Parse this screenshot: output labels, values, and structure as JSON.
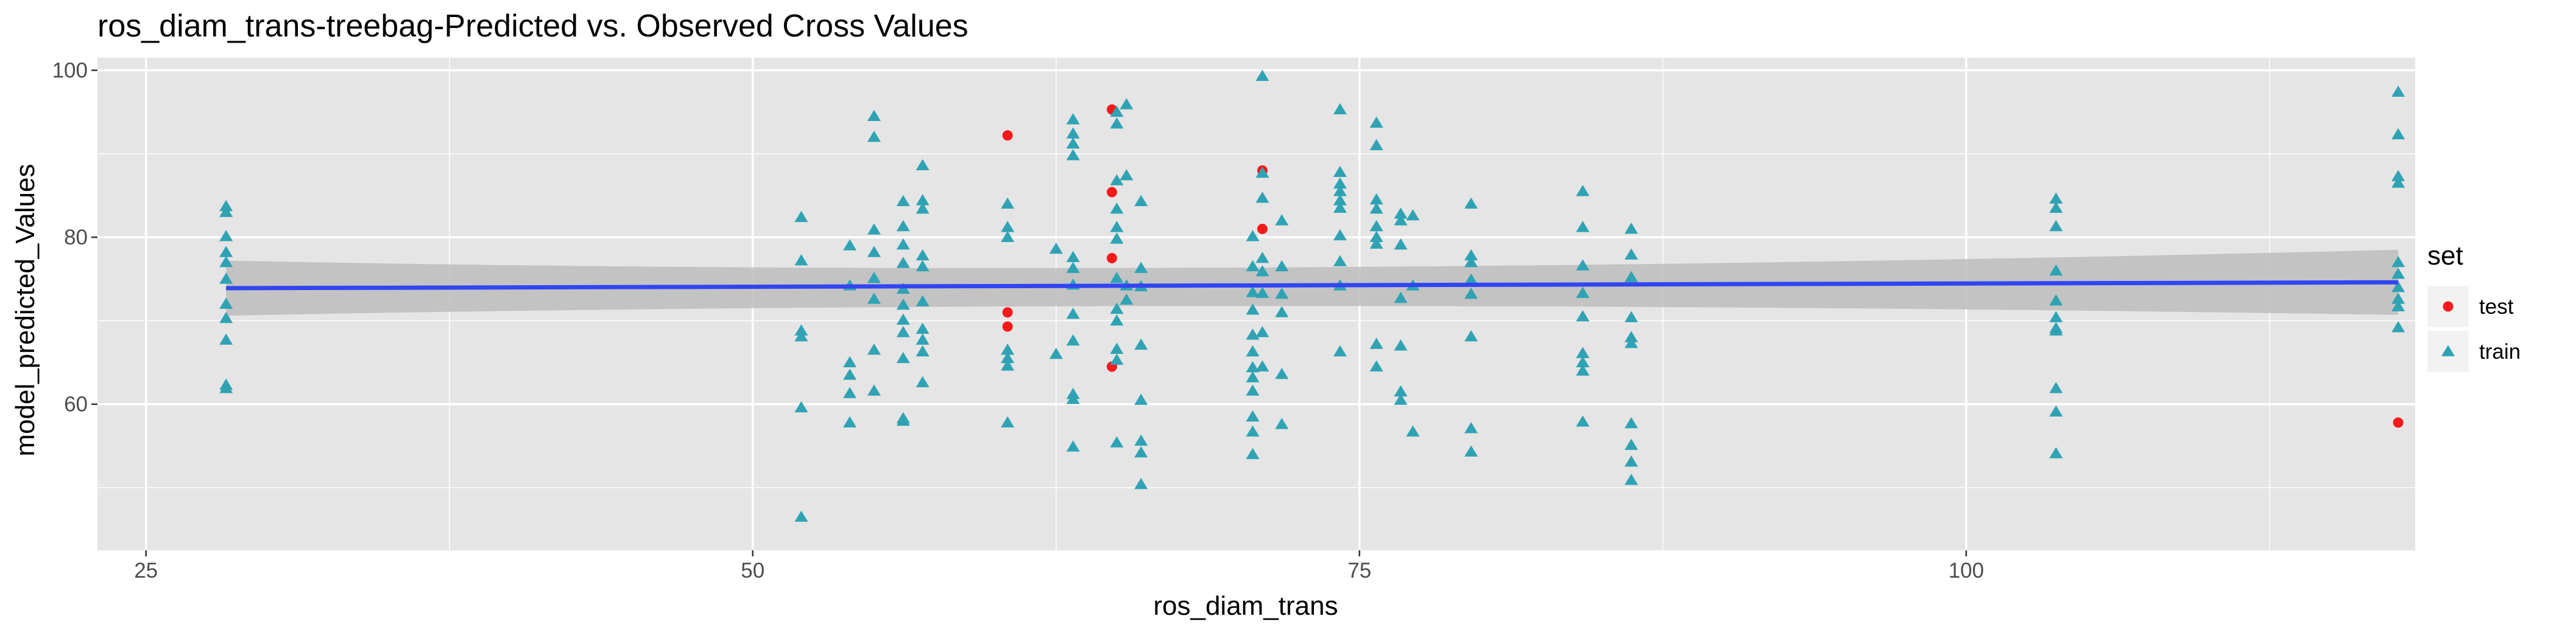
{
  "chart_data": {
    "type": "scatter",
    "title": "ros_diam_trans-treebag-Predicted vs. Observed Cross Values",
    "xlabel": "ros_diam_trans",
    "ylabel": "model_predicted_Values",
    "xlim": [
      23.0,
      118.5
    ],
    "ylim": [
      42.5,
      101.5
    ],
    "x_ticks": [
      25,
      50,
      75,
      100
    ],
    "y_ticks": [
      60,
      80,
      100
    ],
    "grid": true,
    "legend": {
      "title": "set",
      "position": "right",
      "entries": [
        "test",
        "train"
      ]
    },
    "colors": {
      "test": "#F8191B",
      "train": "#2FA3B4",
      "fit_line": "#3245F2",
      "ribbon": "#BDBDBD",
      "panel": "#E5E5E5",
      "grid": "#FFFFFF"
    },
    "series": [
      {
        "name": "test",
        "marker": "circle",
        "points": [
          [
            60.5,
            92.2
          ],
          [
            60.5,
            71.0
          ],
          [
            60.5,
            69.3
          ],
          [
            64.8,
            95.3
          ],
          [
            64.8,
            85.4
          ],
          [
            64.8,
            77.5
          ],
          [
            64.8,
            64.5
          ],
          [
            71.0,
            88.0
          ],
          [
            71.0,
            81.0
          ],
          [
            117.8,
            57.8
          ]
        ]
      },
      {
        "name": "train",
        "marker": "triangle",
        "points": [
          [
            28.3,
            83.7
          ],
          [
            28.3,
            83.0
          ],
          [
            28.3,
            80.1
          ],
          [
            28.3,
            78.2
          ],
          [
            28.3,
            77.0
          ],
          [
            28.3,
            75.0
          ],
          [
            28.3,
            72.0
          ],
          [
            28.3,
            70.3
          ],
          [
            28.3,
            67.7
          ],
          [
            28.3,
            62.3
          ],
          [
            28.3,
            61.9
          ],
          [
            52.0,
            82.4
          ],
          [
            52.0,
            77.2
          ],
          [
            52.0,
            68.8
          ],
          [
            52.0,
            68.1
          ],
          [
            52.0,
            59.6
          ],
          [
            52.0,
            46.5
          ],
          [
            54.0,
            79.0
          ],
          [
            54.0,
            74.2
          ],
          [
            54.0,
            65.0
          ],
          [
            54.0,
            63.5
          ],
          [
            54.0,
            61.3
          ],
          [
            54.0,
            57.8
          ],
          [
            55.0,
            94.5
          ],
          [
            55.0,
            92.0
          ],
          [
            55.0,
            80.9
          ],
          [
            55.0,
            78.2
          ],
          [
            55.0,
            75.1
          ],
          [
            55.0,
            72.6
          ],
          [
            55.0,
            66.5
          ],
          [
            55.0,
            61.6
          ],
          [
            56.2,
            84.3
          ],
          [
            56.2,
            81.3
          ],
          [
            56.2,
            79.1
          ],
          [
            56.2,
            76.9
          ],
          [
            56.2,
            73.8
          ],
          [
            56.2,
            71.9
          ],
          [
            56.2,
            70.1
          ],
          [
            56.2,
            68.6
          ],
          [
            56.2,
            65.5
          ],
          [
            56.2,
            58.3
          ],
          [
            56.2,
            58.0
          ],
          [
            57.0,
            88.6
          ],
          [
            57.0,
            84.4
          ],
          [
            57.0,
            83.4
          ],
          [
            57.0,
            77.8
          ],
          [
            57.0,
            76.5
          ],
          [
            57.0,
            72.3
          ],
          [
            57.0,
            69.0
          ],
          [
            57.0,
            67.7
          ],
          [
            57.0,
            66.3
          ],
          [
            57.0,
            62.6
          ],
          [
            60.5,
            84.0
          ],
          [
            60.5,
            81.2
          ],
          [
            60.5,
            80.0
          ],
          [
            60.5,
            66.5
          ],
          [
            60.5,
            65.5
          ],
          [
            60.5,
            64.6
          ],
          [
            60.5,
            57.8
          ],
          [
            62.5,
            78.6
          ],
          [
            62.5,
            66.0
          ],
          [
            63.2,
            94.1
          ],
          [
            63.2,
            92.4
          ],
          [
            63.2,
            91.2
          ],
          [
            63.2,
            89.8
          ],
          [
            63.2,
            77.6
          ],
          [
            63.2,
            76.3
          ],
          [
            63.2,
            74.3
          ],
          [
            63.2,
            70.8
          ],
          [
            63.2,
            67.6
          ],
          [
            63.2,
            61.2
          ],
          [
            63.2,
            60.6
          ],
          [
            63.2,
            54.9
          ],
          [
            65.0,
            95.0
          ],
          [
            65.0,
            93.6
          ],
          [
            65.0,
            86.8
          ],
          [
            65.0,
            83.4
          ],
          [
            65.0,
            81.2
          ],
          [
            65.0,
            79.8
          ],
          [
            65.0,
            75.1
          ],
          [
            65.0,
            71.4
          ],
          [
            65.0,
            70.0
          ],
          [
            65.0,
            66.6
          ],
          [
            65.0,
            65.3
          ],
          [
            65.0,
            55.4
          ],
          [
            65.4,
            95.9
          ],
          [
            65.4,
            87.4
          ],
          [
            65.4,
            74.2
          ],
          [
            65.4,
            72.5
          ],
          [
            66.0,
            84.3
          ],
          [
            66.0,
            76.3
          ],
          [
            66.0,
            74.1
          ],
          [
            66.0,
            67.1
          ],
          [
            66.0,
            60.5
          ],
          [
            66.0,
            55.6
          ],
          [
            66.0,
            54.2
          ],
          [
            66.0,
            50.4
          ],
          [
            70.6,
            80.1
          ],
          [
            70.6,
            76.5
          ],
          [
            70.6,
            73.4
          ],
          [
            70.6,
            71.3
          ],
          [
            70.6,
            68.3
          ],
          [
            70.6,
            66.3
          ],
          [
            70.6,
            64.4
          ],
          [
            70.6,
            63.2
          ],
          [
            70.6,
            61.6
          ],
          [
            70.6,
            58.5
          ],
          [
            70.6,
            56.7
          ],
          [
            70.6,
            54.0
          ],
          [
            71.0,
            99.3
          ],
          [
            71.0,
            87.7
          ],
          [
            71.0,
            84.7
          ],
          [
            71.0,
            77.5
          ],
          [
            71.0,
            75.9
          ],
          [
            71.0,
            73.3
          ],
          [
            71.0,
            68.6
          ],
          [
            71.0,
            64.5
          ],
          [
            71.8,
            82.0
          ],
          [
            71.8,
            76.5
          ],
          [
            71.8,
            73.2
          ],
          [
            71.8,
            71.0
          ],
          [
            71.8,
            63.6
          ],
          [
            71.8,
            57.6
          ],
          [
            74.2,
            95.3
          ],
          [
            74.2,
            87.8
          ],
          [
            74.2,
            86.4
          ],
          [
            74.2,
            85.5
          ],
          [
            74.2,
            84.4
          ],
          [
            74.2,
            83.5
          ],
          [
            74.2,
            80.2
          ],
          [
            74.2,
            77.1
          ],
          [
            74.2,
            74.2
          ],
          [
            74.2,
            66.3
          ],
          [
            75.7,
            93.7
          ],
          [
            75.7,
            91.0
          ],
          [
            75.7,
            84.5
          ],
          [
            75.7,
            83.4
          ],
          [
            75.7,
            81.3
          ],
          [
            75.7,
            80.0
          ],
          [
            75.7,
            79.2
          ],
          [
            75.7,
            67.2
          ],
          [
            75.7,
            64.5
          ],
          [
            76.7,
            82.8
          ],
          [
            76.7,
            82.0
          ],
          [
            76.7,
            79.1
          ],
          [
            76.7,
            72.7
          ],
          [
            76.7,
            67.0
          ],
          [
            76.7,
            61.5
          ],
          [
            76.7,
            60.5
          ],
          [
            77.2,
            82.6
          ],
          [
            77.2,
            74.2
          ],
          [
            77.2,
            56.7
          ],
          [
            79.6,
            84.0
          ],
          [
            79.6,
            77.8
          ],
          [
            79.6,
            77.0
          ],
          [
            79.6,
            74.9
          ],
          [
            79.6,
            73.2
          ],
          [
            79.6,
            68.1
          ],
          [
            79.6,
            57.1
          ],
          [
            79.6,
            54.3
          ],
          [
            84.2,
            85.5
          ],
          [
            84.2,
            81.2
          ],
          [
            84.2,
            76.6
          ],
          [
            84.2,
            73.3
          ],
          [
            84.2,
            70.5
          ],
          [
            84.2,
            66.1
          ],
          [
            84.2,
            65.0
          ],
          [
            84.2,
            64.0
          ],
          [
            84.2,
            57.9
          ],
          [
            86.2,
            81.0
          ],
          [
            86.2,
            77.9
          ],
          [
            86.2,
            75.2
          ],
          [
            86.2,
            70.4
          ],
          [
            86.2,
            68.0
          ],
          [
            86.2,
            67.3
          ],
          [
            86.2,
            57.7
          ],
          [
            86.2,
            55.1
          ],
          [
            86.2,
            53.1
          ],
          [
            86.2,
            50.9
          ],
          [
            103.7,
            84.6
          ],
          [
            103.7,
            83.5
          ],
          [
            103.7,
            81.3
          ],
          [
            103.7,
            76.0
          ],
          [
            103.7,
            72.4
          ],
          [
            103.7,
            70.4
          ],
          [
            103.7,
            69.1
          ],
          [
            103.7,
            68.8
          ],
          [
            103.7,
            61.9
          ],
          [
            103.7,
            59.1
          ],
          [
            103.7,
            54.1
          ],
          [
            117.8,
            97.4
          ],
          [
            117.8,
            92.3
          ],
          [
            117.8,
            87.3
          ],
          [
            117.8,
            86.5
          ],
          [
            117.8,
            77.0
          ],
          [
            117.8,
            75.6
          ],
          [
            117.8,
            74.0
          ],
          [
            117.8,
            72.6
          ],
          [
            117.8,
            71.7
          ],
          [
            117.8,
            69.2
          ]
        ]
      }
    ],
    "trend": {
      "method": "lm",
      "x_range": [
        28.3,
        117.8
      ],
      "y_range": [
        73.9,
        74.6
      ],
      "ci_upper": [
        77.2,
        78.5
      ],
      "ci_lower": [
        70.6,
        70.7
      ]
    }
  }
}
